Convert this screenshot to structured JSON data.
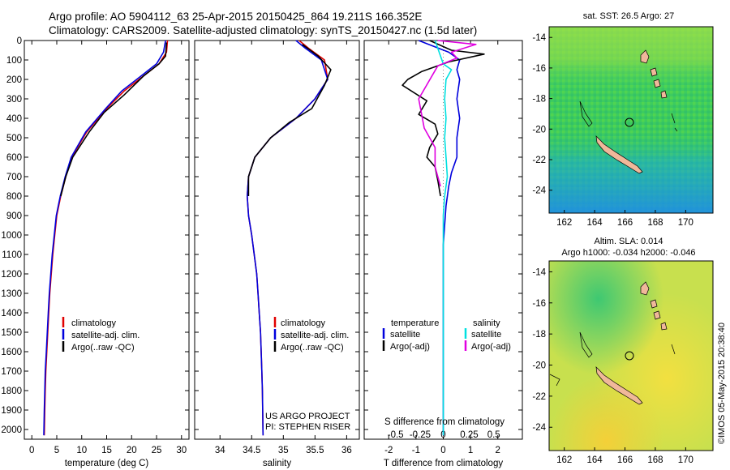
{
  "header": {
    "line1": "Argo profile: AO 5904112_63 25-Apr-2015 20150425_864 19.211S 166.352E",
    "line2": "Climatology: CARS2009. Satellite-adjusted climatology: synTS_20150427.nc (1.5d later)"
  },
  "colors": {
    "climatology": "#e00000",
    "satellite": "#0000dd",
    "argo": "#000000",
    "satellite_salinity": "#00e0e0",
    "argo_salinity": "#e000e0"
  },
  "credits": {
    "project": "US ARGO PROJECT",
    "pi": "PI: STEPHEN RISER",
    "stamp": "©IMOS 05-May-2015 20:38:40"
  },
  "chart_data": [
    {
      "id": "temperature",
      "type": "line",
      "xlabel": "temperature (deg C)",
      "xlim": [
        -1.5,
        31.5
      ],
      "ylim": [
        0,
        2050
      ],
      "y_reversed": true,
      "xticks": [
        0,
        5,
        10,
        15,
        20,
        25,
        30
      ],
      "yticks": [
        0,
        100,
        200,
        300,
        400,
        500,
        600,
        700,
        800,
        900,
        1000,
        1100,
        1200,
        1300,
        1400,
        1500,
        1600,
        1700,
        1800,
        1900,
        2000
      ],
      "legend": [
        "climatology",
        "satellite-adj. clim.",
        "Argo(..raw -QC)"
      ],
      "series": [
        {
          "name": "climatology",
          "color_key": "climatology",
          "x": [
            27.2,
            27.0,
            25.5,
            22.5,
            18.5,
            15.0,
            11.0,
            8.0,
            6.8,
            5.8,
            5.0,
            4.6,
            4.2,
            3.9,
            3.6,
            3.4,
            3.2,
            3.0,
            2.8,
            2.7,
            2.6,
            2.5
          ],
          "y": [
            0,
            60,
            120,
            180,
            260,
            350,
            470,
            600,
            700,
            800,
            900,
            1000,
            1100,
            1200,
            1300,
            1400,
            1500,
            1600,
            1700,
            1800,
            1900,
            2030
          ]
        },
        {
          "name": "satellite-adj. clim.",
          "color_key": "satellite",
          "x": [
            26.8,
            26.4,
            25.0,
            22.0,
            18.0,
            14.8,
            10.8,
            7.9,
            6.7,
            5.7,
            4.9,
            4.5,
            4.1,
            3.8,
            3.5,
            3.3,
            3.1,
            2.9,
            2.7,
            2.6,
            2.5,
            2.4
          ],
          "y": [
            0,
            60,
            120,
            180,
            260,
            350,
            470,
            600,
            700,
            800,
            900,
            1000,
            1100,
            1200,
            1300,
            1400,
            1500,
            1600,
            1700,
            1800,
            1900,
            2030
          ]
        },
        {
          "name": "Argo(..raw -QC)",
          "color_key": "argo",
          "x": [
            27.0,
            26.8,
            25.5,
            22.5,
            18.5,
            14.5,
            11.5,
            8.2,
            6.8,
            5.8
          ],
          "y": [
            10,
            80,
            120,
            180,
            280,
            370,
            470,
            600,
            700,
            800
          ]
        }
      ]
    },
    {
      "id": "salinity",
      "type": "line",
      "xlabel": "salinity",
      "xlim": [
        33.6,
        36.2
      ],
      "ylim": [
        0,
        2050
      ],
      "y_reversed": true,
      "xticks": [
        34,
        34.5,
        35,
        35.5,
        36
      ],
      "legend": [
        "climatology",
        "satellite-adj. clim.",
        "Argo(..raw -QC)"
      ],
      "series": [
        {
          "name": "climatology",
          "color_key": "climatology",
          "x": [
            35.25,
            35.4,
            35.65,
            35.7,
            35.5,
            35.2,
            34.8,
            34.55,
            34.45,
            34.43,
            34.45,
            34.5,
            34.54,
            34.58,
            34.6,
            34.62,
            34.64,
            34.65,
            34.66,
            34.67,
            34.68
          ],
          "y": [
            0,
            40,
            100,
            200,
            300,
            400,
            500,
            600,
            700,
            800,
            900,
            1000,
            1100,
            1200,
            1300,
            1400,
            1500,
            1600,
            1700,
            1800,
            2030
          ]
        },
        {
          "name": "satellite-adj. clim.",
          "color_key": "satellite",
          "x": [
            35.2,
            35.35,
            35.6,
            35.7,
            35.5,
            35.2,
            34.8,
            34.55,
            34.45,
            34.43,
            34.45,
            34.5,
            34.54,
            34.58,
            34.6,
            34.62,
            34.64,
            34.65,
            34.66,
            34.67,
            34.68
          ],
          "y": [
            0,
            40,
            100,
            200,
            300,
            400,
            500,
            600,
            700,
            800,
            900,
            1000,
            1100,
            1200,
            1300,
            1400,
            1500,
            1600,
            1700,
            1800,
            2030
          ]
        },
        {
          "name": "Argo(..raw -QC)",
          "color_key": "argo",
          "x": [
            35.3,
            35.55,
            35.75,
            35.65,
            35.45,
            35.1,
            34.8,
            34.55,
            34.45,
            34.45
          ],
          "y": [
            20,
            80,
            150,
            230,
            350,
            420,
            500,
            600,
            700,
            800
          ]
        }
      ]
    },
    {
      "id": "differences",
      "type": "line",
      "xlabel": "T difference from climatology",
      "xlabel_top": "S difference from climatology",
      "xlim": [
        -2.9,
        2.9
      ],
      "ylim": [
        0,
        2050
      ],
      "y_reversed": true,
      "xticks": [
        -2,
        -1,
        0,
        1,
        2
      ],
      "s_tick_labels": [
        "-0.5",
        "-0.25",
        "0",
        "0.25",
        "0.5"
      ],
      "legend_headers": [
        "temperature",
        "salinity"
      ],
      "legend": [
        "satellite",
        "Argo(-adj)",
        "satellite",
        "Argo(-adj)"
      ],
      "series": [
        {
          "name": "temperature satellite",
          "color_key": "satellite",
          "x": [
            -0.9,
            0.2,
            0.6,
            0.5,
            0.6,
            0.5,
            0.6,
            0.5,
            0.5,
            0.3,
            0.2,
            0.1,
            0.05,
            0.0,
            0.0,
            0.0,
            0.0,
            0.0,
            0.0
          ],
          "y": [
            0,
            60,
            100,
            150,
            200,
            300,
            400,
            500,
            600,
            680,
            750,
            850,
            950,
            1050,
            1200,
            1400,
            1600,
            1800,
            2030
          ]
        },
        {
          "name": "temperature Argo(-adj)",
          "color_key": "argo",
          "x": [
            -0.5,
            0.3,
            1.5,
            0.2,
            -0.8,
            -1.3,
            -1.5,
            -0.6,
            -0.9,
            -0.3,
            -0.2,
            -0.5,
            -0.6,
            -0.3,
            -0.2,
            -0.1
          ],
          "y": [
            0,
            50,
            70,
            110,
            160,
            200,
            230,
            310,
            380,
            430,
            480,
            550,
            600,
            650,
            720,
            800
          ]
        },
        {
          "name": "salinity satellite",
          "color_key": "satellite_salinity",
          "x": [
            -0.3,
            -0.1,
            0.0,
            0.3,
            0.1,
            0.05,
            0.1,
            0.05,
            0.1,
            0.15,
            0.05,
            0.0,
            0.0,
            0.0,
            0.0
          ],
          "y": [
            0,
            80,
            120,
            150,
            200,
            300,
            400,
            500,
            600,
            700,
            800,
            900,
            1200,
            1600,
            2030
          ]
        },
        {
          "name": "salinity Argo(-adj)",
          "color_key": "argo_salinity",
          "x": [
            -0.2,
            1.2,
            0.3,
            0.5,
            -0.2,
            -0.9,
            -0.7,
            -0.3,
            -0.3,
            -0.1
          ],
          "y": [
            0,
            20,
            60,
            90,
            130,
            300,
            450,
            550,
            650,
            750
          ]
        }
      ]
    }
  ],
  "maps": [
    {
      "id": "sst-map",
      "title": "sat. SST: 26.5 Argo: 27",
      "xticks": [
        162,
        164,
        166,
        168,
        170
      ],
      "yticks": [
        -14,
        -16,
        -18,
        -20,
        -22,
        -24
      ]
    },
    {
      "id": "sla-map",
      "title": "Altim. SLA: 0.014",
      "subtitle": "Argo h1000: -0.034 h2000: -0.046",
      "xticks": [
        162,
        164,
        166,
        168,
        170
      ],
      "yticks": [
        -14,
        -16,
        -18,
        -20,
        -22,
        -24
      ]
    }
  ]
}
